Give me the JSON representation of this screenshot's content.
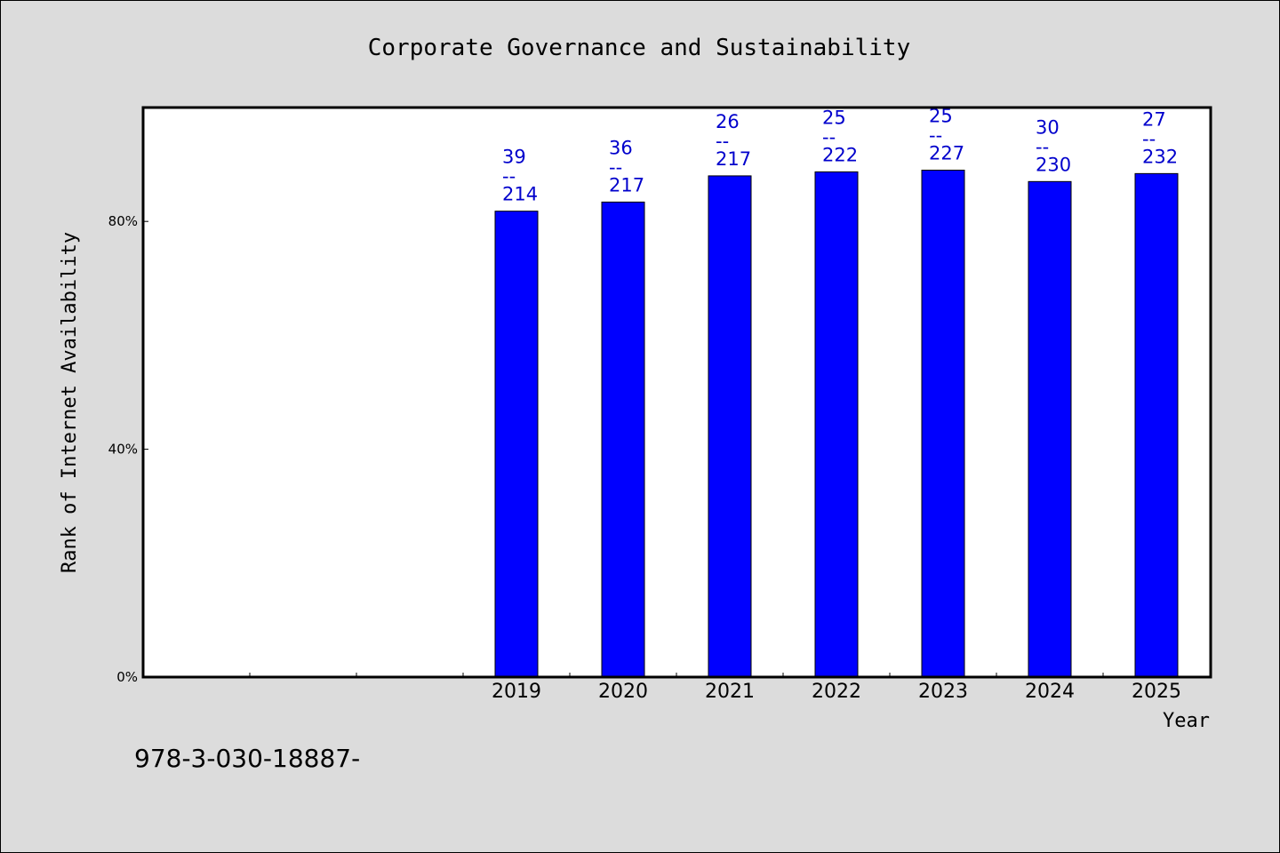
{
  "chart_data": {
    "type": "bar",
    "title": "Corporate Governance and Sustainability",
    "xlabel": "Year",
    "ylabel": "Rank of Internet Availability",
    "categories": [
      "",
      "",
      "",
      "2019",
      "2020",
      "2021",
      "2022",
      "2023",
      "2024",
      "2025"
    ],
    "values": [
      null,
      null,
      null,
      81.8,
      83.4,
      88.0,
      88.7,
      89.0,
      87.0,
      88.4
    ],
    "data_labels": [
      null,
      null,
      null,
      [
        "39",
        "--",
        "214"
      ],
      [
        "36",
        "--",
        "217"
      ],
      [
        "26",
        "--",
        "217"
      ],
      [
        "25",
        "--",
        "222"
      ],
      [
        "25",
        "--",
        "227"
      ],
      [
        "30",
        "--",
        "230"
      ],
      [
        "27",
        "--",
        "232"
      ]
    ],
    "yticks": [
      0,
      40,
      80
    ],
    "ytick_labels": [
      "0%",
      "40%",
      "80%"
    ],
    "ylim": [
      0,
      100
    ],
    "grid": false,
    "legend": "none",
    "colors": {
      "bar": "#0000ff",
      "data_label": "#0000cc",
      "background": "#dcdcdc",
      "plot_background": "#ffffff"
    }
  },
  "footer_text": "978-3-030-18887-"
}
